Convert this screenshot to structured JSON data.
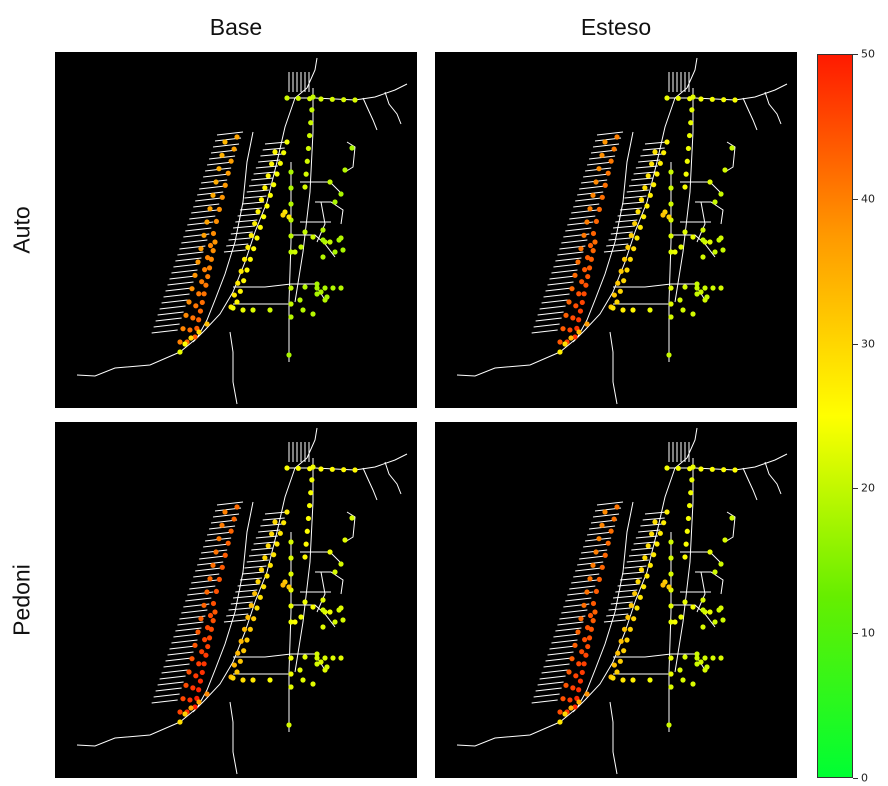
{
  "chart_data": {
    "type": "heatmap",
    "title": "",
    "columns": [
      "Base",
      "Esteso"
    ],
    "rows": [
      "Auto",
      "Pedoni"
    ],
    "panels": [
      {
        "row": "Auto",
        "column": "Base",
        "level_shift": 0
      },
      {
        "row": "Auto",
        "column": "Esteso",
        "level_shift": 4
      },
      {
        "row": "Pedoni",
        "column": "Base",
        "level_shift": 6
      },
      {
        "row": "Pedoni",
        "column": "Esteso",
        "level_shift": 5
      }
    ],
    "colorbar": {
      "range": [
        0,
        50
      ],
      "ticks": [
        "0",
        "10",
        "20",
        "30",
        "40",
        "50"
      ],
      "colors": [
        "#00ff33",
        "#66ee00",
        "#ffff00",
        "#ff9900",
        "#ff1a00"
      ]
    },
    "background": "#000000",
    "edge_color": "#ffffff"
  }
}
